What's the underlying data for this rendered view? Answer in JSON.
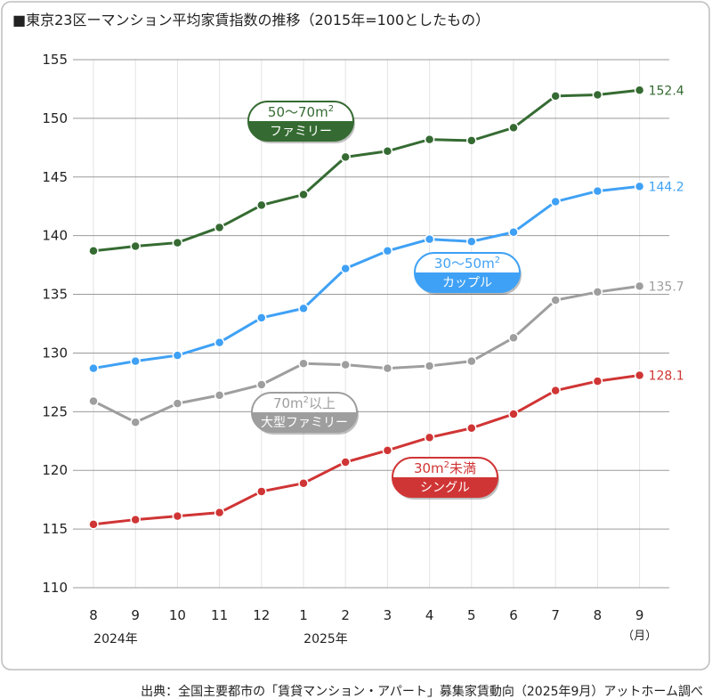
{
  "chart_data": {
    "type": "line",
    "title": "■東京23区ーマンション平均家賃指数の推移（2015年=100としたもの）",
    "ylim": [
      110,
      155
    ],
    "yticks": [
      110,
      115,
      120,
      125,
      130,
      135,
      140,
      145,
      150,
      155
    ],
    "categories": [
      "8",
      "9",
      "10",
      "11",
      "12",
      "1",
      "2",
      "3",
      "4",
      "5",
      "6",
      "7",
      "8",
      "9"
    ],
    "year_labels": [
      {
        "index": 0,
        "text": "2024年"
      },
      {
        "index": 5,
        "text": "2025年"
      }
    ],
    "month_unit": "（月）",
    "grid": true,
    "series": [
      {
        "name": "50〜70m² ファミリー",
        "line1": "50〜70m",
        "line2": "ファミリー",
        "color": "#356b32",
        "values": [
          138.7,
          139.1,
          139.4,
          140.7,
          142.6,
          143.5,
          146.7,
          147.2,
          148.2,
          148.1,
          149.2,
          151.9,
          152.0,
          152.4
        ],
        "end_label": "152.4"
      },
      {
        "name": "30〜50m² カップル",
        "line1": "30〜50m",
        "line2": "カップル",
        "color": "#3fa1f5",
        "values": [
          128.7,
          129.3,
          129.8,
          130.9,
          133.0,
          133.8,
          137.2,
          138.7,
          139.7,
          139.5,
          140.3,
          142.9,
          143.8,
          144.2
        ],
        "end_label": "144.2"
      },
      {
        "name": "70m²以上 大型ファミリー",
        "line1": "70m",
        "line1b": "以上",
        "line2": "大型ファミリー",
        "color": "#9e9e9e",
        "values": [
          125.9,
          124.1,
          125.7,
          126.4,
          127.3,
          129.1,
          129.0,
          128.7,
          128.9,
          129.3,
          131.3,
          134.5,
          135.2,
          135.7
        ],
        "end_label": "135.7"
      },
      {
        "name": "30m²未満 シングル",
        "line1": "30m",
        "line1b": "未満",
        "line2": "シングル",
        "color": "#d03535",
        "values": [
          115.4,
          115.8,
          116.1,
          116.4,
          118.2,
          118.9,
          120.7,
          121.7,
          122.8,
          123.6,
          124.8,
          126.8,
          127.6,
          128.1
        ],
        "end_label": "128.1"
      }
    ],
    "source": "出典：全国主要都市の「賃貸マンション・アパート」募集家賃動向（2025年9月）アットホーム調べ"
  }
}
